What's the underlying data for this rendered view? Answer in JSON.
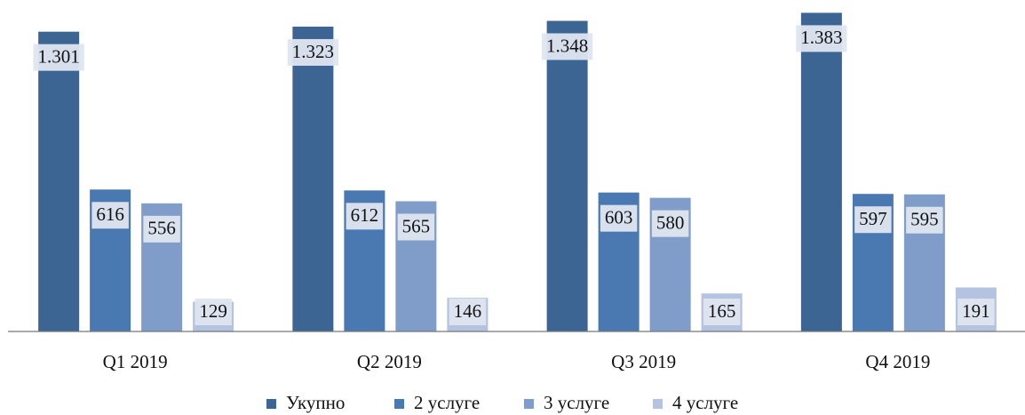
{
  "chart_data": {
    "type": "bar",
    "categories": [
      "Q1 2019",
      "Q2 2019",
      "Q3 2019",
      "Q4 2019"
    ],
    "series": [
      {
        "name": "Укупно",
        "color": "#3d6594",
        "values": [
          1301,
          1323,
          1348,
          1383
        ],
        "value_labels": [
          "1.301",
          "1.323",
          "1.348",
          "1.383"
        ]
      },
      {
        "name": "2 услуге",
        "color": "#4a78b0",
        "values": [
          616,
          612,
          603,
          597
        ]
      },
      {
        "name": "3 услуге",
        "color": "#7f9dc8",
        "values": [
          556,
          565,
          580,
          595
        ]
      },
      {
        "name": "4 услуге",
        "color": "#b4c4e0",
        "values": [
          129,
          146,
          165,
          191
        ]
      }
    ],
    "ylim": [
      0,
      1400
    ]
  }
}
